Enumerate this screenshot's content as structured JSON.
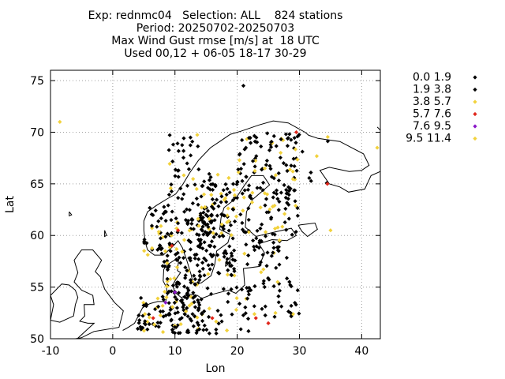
{
  "chart_data": {
    "type": "scatter",
    "title_lines": [
      "Exp: rednmc04   Selection: ALL    824 stations",
      "Period: 20250702-20250703",
      "Max Wind Gust rmse [m/s] at  18 UTC",
      "Used 00,12 + 06-05 18-17 30-29"
    ],
    "xlabel": "Lon",
    "ylabel": "Lat",
    "xlim": [
      -10,
      43
    ],
    "ylim": [
      50,
      76
    ],
    "xticks": [
      "-10",
      "0",
      "10",
      "20",
      "30",
      "40"
    ],
    "yticks": [
      "50",
      "55",
      "60",
      "65",
      "70",
      "75"
    ],
    "grid": true,
    "legend_placement": "right",
    "bins": [
      {
        "label": "0.0 1.9",
        "color": "#000000"
      },
      {
        "label": "1.9 3.8",
        "color": "#000000"
      },
      {
        "label": "3.8 5.7",
        "color": "#f2d23c"
      },
      {
        "label": "5.7 7.6",
        "color": "#e0261b"
      },
      {
        "label": "7.6 9.5",
        "color": "#8a17c7"
      },
      {
        "label": "9.5 11.4",
        "color": "#f2d23c"
      }
    ],
    "sample_points": [
      {
        "lon": 21.0,
        "lat": 74.5,
        "bin": 0
      },
      {
        "lon": -8.5,
        "lat": 71.0,
        "bin": 2
      },
      {
        "lon": 42.5,
        "lat": 68.5,
        "bin": 2
      },
      {
        "lon": 29.5,
        "lat": 70.0,
        "bin": 3
      },
      {
        "lon": 34.5,
        "lat": 65.0,
        "bin": 3
      },
      {
        "lon": 10.5,
        "lat": 60.5,
        "bin": 3
      },
      {
        "lon": 9.5,
        "lat": 59.0,
        "bin": 3
      },
      {
        "lon": 8.5,
        "lat": 53.5,
        "bin": 4
      },
      {
        "lon": 10.0,
        "lat": 54.5,
        "bin": 4
      },
      {
        "lon": 6.5,
        "lat": 52.0,
        "bin": 3
      },
      {
        "lon": 23.0,
        "lat": 52.0,
        "bin": 3
      },
      {
        "lon": 25.0,
        "lat": 51.5,
        "bin": 3
      },
      {
        "lon": 35.0,
        "lat": 60.5,
        "bin": 2
      },
      {
        "lon": 26.5,
        "lat": 55.5,
        "bin": 2
      },
      {
        "lon": 16.0,
        "lat": 52.0,
        "bin": 3
      }
    ]
  },
  "map": {
    "coast_color": "#000000"
  }
}
